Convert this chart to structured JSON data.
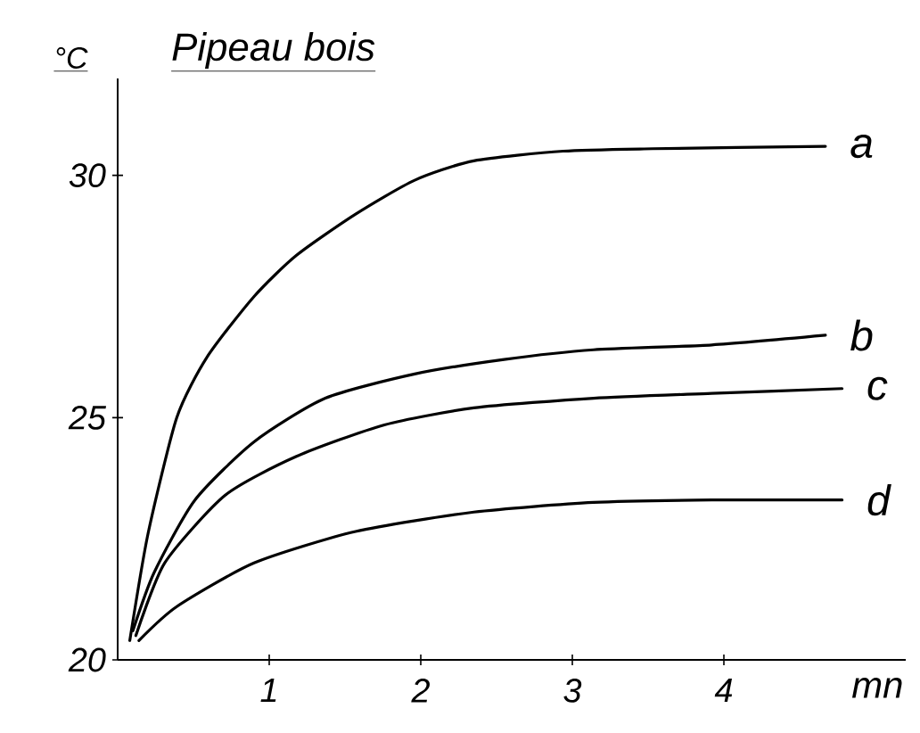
{
  "chart_data": {
    "type": "line",
    "title": "Pipeau bois",
    "xlabel": "mn",
    "ylabel": "°C",
    "xlim": [
      0,
      5.2
    ],
    "ylim": [
      20,
      32
    ],
    "xticks": [
      1,
      2,
      3,
      4
    ],
    "yticks": [
      20,
      25,
      30
    ],
    "grid": false,
    "legend": false,
    "marker": "none",
    "line_style": "solid",
    "series": [
      {
        "name": "a",
        "color": "#000000",
        "x": [
          0.08,
          0.2,
          0.39,
          0.59,
          0.9,
          1.18,
          1.57,
          1.96,
          2.35,
          2.94,
          3.53,
          4.67
        ],
        "values": [
          20.4,
          22.6,
          25.0,
          26.25,
          27.5,
          28.35,
          29.2,
          29.9,
          30.3,
          30.5,
          30.55,
          30.6
        ]
      },
      {
        "name": "b",
        "color": "#000000",
        "x": [
          0.1,
          0.24,
          0.51,
          0.9,
          1.37,
          1.96,
          2.55,
          3.14,
          3.92,
          4.67
        ],
        "values": [
          20.6,
          21.8,
          23.3,
          24.5,
          25.4,
          25.9,
          26.2,
          26.4,
          26.5,
          26.7
        ]
      },
      {
        "name": "c",
        "color": "#000000",
        "x": [
          0.12,
          0.31,
          0.71,
          1.18,
          1.76,
          2.35,
          3.14,
          3.92,
          4.78
        ],
        "values": [
          20.5,
          22.0,
          23.4,
          24.2,
          24.85,
          25.2,
          25.4,
          25.5,
          25.6
        ]
      },
      {
        "name": "d",
        "color": "#000000",
        "x": [
          0.14,
          0.39,
          0.9,
          1.57,
          2.35,
          3.14,
          3.92,
          4.78
        ],
        "values": [
          20.4,
          21.1,
          22.0,
          22.65,
          23.05,
          23.25,
          23.3,
          23.3
        ]
      }
    ]
  }
}
